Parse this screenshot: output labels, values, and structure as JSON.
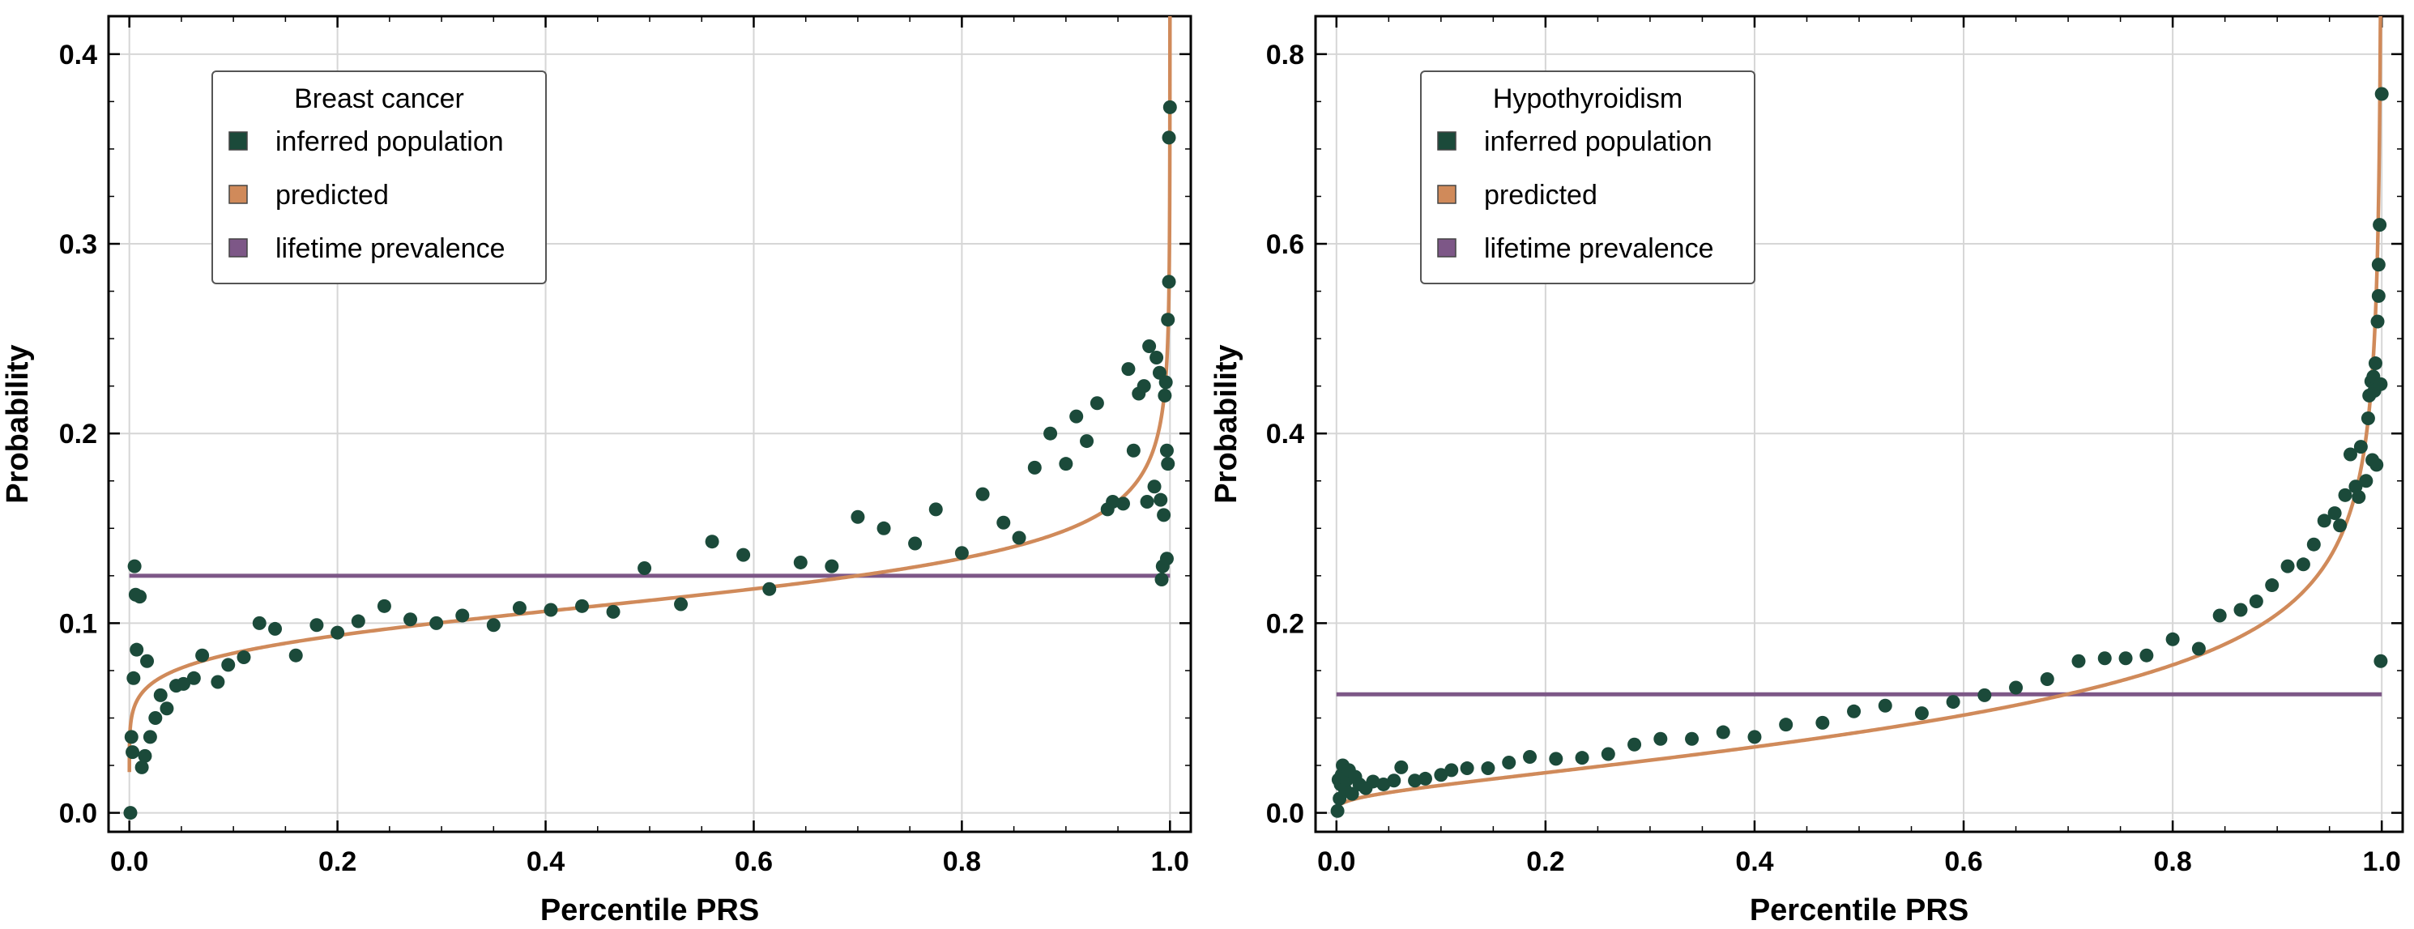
{
  "colors": {
    "inferred": "#1b4a3a",
    "predicted": "#d08a5a",
    "prevalence": "#7d5787",
    "grid": "#d6d6d6"
  },
  "chart_data": [
    {
      "type": "scatter",
      "title": "Breast cancer",
      "xlabel": "Percentile PRS",
      "ylabel": "Probability",
      "xlim": [
        -0.02,
        1.02
      ],
      "ylim": [
        -0.01,
        0.42
      ],
      "xticks": [
        0.0,
        0.2,
        0.4,
        0.6,
        0.8,
        1.0
      ],
      "xtick_labels": [
        "0.0",
        "0.2",
        "0.4",
        "0.6",
        "0.8",
        "1.0"
      ],
      "yticks": [
        0.0,
        0.1,
        0.2,
        0.3,
        0.4
      ],
      "ytick_labels": [
        "0.0",
        "0.1",
        "0.2",
        "0.3",
        "0.4"
      ],
      "legend": {
        "title": "Breast cancer",
        "position": "top-left",
        "entries": [
          "inferred population",
          "predicted",
          "lifetime prevalence"
        ]
      },
      "prevalence": 0.125,
      "predicted_curve": {
        "a": 0.118,
        "b": 0.02,
        "k": 1.0,
        "ymax": 0.42
      },
      "inferred_points": [
        [
          0.001,
          0.0
        ],
        [
          0.002,
          0.04
        ],
        [
          0.003,
          0.032
        ],
        [
          0.004,
          0.071
        ],
        [
          0.005,
          0.13
        ],
        [
          0.006,
          0.115
        ],
        [
          0.007,
          0.086
        ],
        [
          0.01,
          0.114
        ],
        [
          0.012,
          0.024
        ],
        [
          0.015,
          0.03
        ],
        [
          0.017,
          0.08
        ],
        [
          0.02,
          0.04
        ],
        [
          0.025,
          0.05
        ],
        [
          0.03,
          0.062
        ],
        [
          0.036,
          0.055
        ],
        [
          0.045,
          0.067
        ],
        [
          0.052,
          0.068
        ],
        [
          0.062,
          0.071
        ],
        [
          0.07,
          0.083
        ],
        [
          0.085,
          0.069
        ],
        [
          0.095,
          0.078
        ],
        [
          0.11,
          0.082
        ],
        [
          0.125,
          0.1
        ],
        [
          0.14,
          0.097
        ],
        [
          0.16,
          0.083
        ],
        [
          0.18,
          0.099
        ],
        [
          0.2,
          0.095
        ],
        [
          0.22,
          0.101
        ],
        [
          0.245,
          0.109
        ],
        [
          0.27,
          0.102
        ],
        [
          0.295,
          0.1
        ],
        [
          0.32,
          0.104
        ],
        [
          0.35,
          0.099
        ],
        [
          0.375,
          0.108
        ],
        [
          0.405,
          0.107
        ],
        [
          0.435,
          0.109
        ],
        [
          0.465,
          0.106
        ],
        [
          0.495,
          0.129
        ],
        [
          0.53,
          0.11
        ],
        [
          0.56,
          0.143
        ],
        [
          0.59,
          0.136
        ],
        [
          0.615,
          0.118
        ],
        [
          0.645,
          0.132
        ],
        [
          0.675,
          0.13
        ],
        [
          0.7,
          0.156
        ],
        [
          0.725,
          0.15
        ],
        [
          0.755,
          0.142
        ],
        [
          0.775,
          0.16
        ],
        [
          0.8,
          0.137
        ],
        [
          0.82,
          0.168
        ],
        [
          0.84,
          0.153
        ],
        [
          0.855,
          0.145
        ],
        [
          0.87,
          0.182
        ],
        [
          0.885,
          0.2
        ],
        [
          0.9,
          0.184
        ],
        [
          0.91,
          0.209
        ],
        [
          0.92,
          0.196
        ],
        [
          0.93,
          0.216
        ],
        [
          0.94,
          0.16
        ],
        [
          0.945,
          0.164
        ],
        [
          0.955,
          0.163
        ],
        [
          0.96,
          0.234
        ],
        [
          0.965,
          0.191
        ],
        [
          0.97,
          0.221
        ],
        [
          0.975,
          0.225
        ],
        [
          0.978,
          0.164
        ],
        [
          0.98,
          0.246
        ],
        [
          0.985,
          0.172
        ],
        [
          0.987,
          0.24
        ],
        [
          0.99,
          0.232
        ],
        [
          0.991,
          0.165
        ],
        [
          0.992,
          0.123
        ],
        [
          0.993,
          0.13
        ],
        [
          0.994,
          0.157
        ],
        [
          0.995,
          0.22
        ],
        [
          0.996,
          0.227
        ],
        [
          0.997,
          0.134
        ],
        [
          0.997,
          0.191
        ],
        [
          0.998,
          0.184
        ],
        [
          0.998,
          0.26
        ],
        [
          0.999,
          0.28
        ],
        [
          0.999,
          0.356
        ],
        [
          1.0,
          0.372
        ]
      ]
    },
    {
      "type": "scatter",
      "title": "Hypothyroidism",
      "xlabel": "Percentile PRS",
      "ylabel": "Probability",
      "xlim": [
        -0.02,
        1.02
      ],
      "ylim": [
        -0.02,
        0.84
      ],
      "xticks": [
        0.0,
        0.2,
        0.4,
        0.6,
        0.8,
        1.0
      ],
      "xtick_labels": [
        "0.0",
        "0.2",
        "0.4",
        "0.6",
        "0.8",
        "1.0"
      ],
      "yticks": [
        0.0,
        0.2,
        0.4,
        0.6,
        0.8
      ],
      "ytick_labels": [
        "0.0",
        "0.2",
        "0.4",
        "0.6",
        "0.8"
      ],
      "legend": {
        "title": "Hypothyroidism",
        "position": "top-left",
        "entries": [
          "inferred population",
          "predicted",
          "lifetime prevalence"
        ]
      },
      "prevalence": 0.125,
      "predicted_curve": {
        "a": 0.08,
        "b": 0.012,
        "k": 3.0,
        "ymax": 0.84
      },
      "inferred_points": [
        [
          0.001,
          0.002
        ],
        [
          0.002,
          0.035
        ],
        [
          0.003,
          0.015
        ],
        [
          0.004,
          0.03
        ],
        [
          0.005,
          0.04
        ],
        [
          0.006,
          0.05
        ],
        [
          0.008,
          0.025
        ],
        [
          0.01,
          0.035
        ],
        [
          0.012,
          0.045
        ],
        [
          0.015,
          0.02
        ],
        [
          0.018,
          0.038
        ],
        [
          0.022,
          0.03
        ],
        [
          0.028,
          0.026
        ],
        [
          0.035,
          0.033
        ],
        [
          0.045,
          0.03
        ],
        [
          0.055,
          0.034
        ],
        [
          0.062,
          0.048
        ],
        [
          0.075,
          0.034
        ],
        [
          0.085,
          0.036
        ],
        [
          0.1,
          0.04
        ],
        [
          0.11,
          0.045
        ],
        [
          0.125,
          0.047
        ],
        [
          0.145,
          0.047
        ],
        [
          0.165,
          0.053
        ],
        [
          0.185,
          0.059
        ],
        [
          0.21,
          0.057
        ],
        [
          0.235,
          0.058
        ],
        [
          0.26,
          0.062
        ],
        [
          0.285,
          0.072
        ],
        [
          0.31,
          0.078
        ],
        [
          0.34,
          0.078
        ],
        [
          0.37,
          0.085
        ],
        [
          0.4,
          0.08
        ],
        [
          0.43,
          0.093
        ],
        [
          0.465,
          0.095
        ],
        [
          0.495,
          0.107
        ],
        [
          0.525,
          0.113
        ],
        [
          0.56,
          0.105
        ],
        [
          0.59,
          0.117
        ],
        [
          0.62,
          0.124
        ],
        [
          0.65,
          0.132
        ],
        [
          0.68,
          0.141
        ],
        [
          0.71,
          0.16
        ],
        [
          0.735,
          0.163
        ],
        [
          0.755,
          0.163
        ],
        [
          0.775,
          0.166
        ],
        [
          0.8,
          0.183
        ],
        [
          0.825,
          0.173
        ],
        [
          0.845,
          0.208
        ],
        [
          0.865,
          0.214
        ],
        [
          0.88,
          0.223
        ],
        [
          0.895,
          0.24
        ],
        [
          0.91,
          0.26
        ],
        [
          0.925,
          0.262
        ],
        [
          0.935,
          0.283
        ],
        [
          0.945,
          0.308
        ],
        [
          0.955,
          0.316
        ],
        [
          0.96,
          0.303
        ],
        [
          0.965,
          0.335
        ],
        [
          0.97,
          0.378
        ],
        [
          0.975,
          0.344
        ],
        [
          0.978,
          0.333
        ],
        [
          0.98,
          0.386
        ],
        [
          0.985,
          0.35
        ],
        [
          0.987,
          0.416
        ],
        [
          0.988,
          0.44
        ],
        [
          0.99,
          0.455
        ],
        [
          0.991,
          0.372
        ],
        [
          0.992,
          0.46
        ],
        [
          0.993,
          0.445
        ],
        [
          0.994,
          0.474
        ],
        [
          0.995,
          0.367
        ],
        [
          0.996,
          0.518
        ],
        [
          0.997,
          0.545
        ],
        [
          0.997,
          0.578
        ],
        [
          0.998,
          0.62
        ],
        [
          0.999,
          0.16
        ],
        [
          0.999,
          0.452
        ],
        [
          1.0,
          0.758
        ]
      ]
    }
  ]
}
